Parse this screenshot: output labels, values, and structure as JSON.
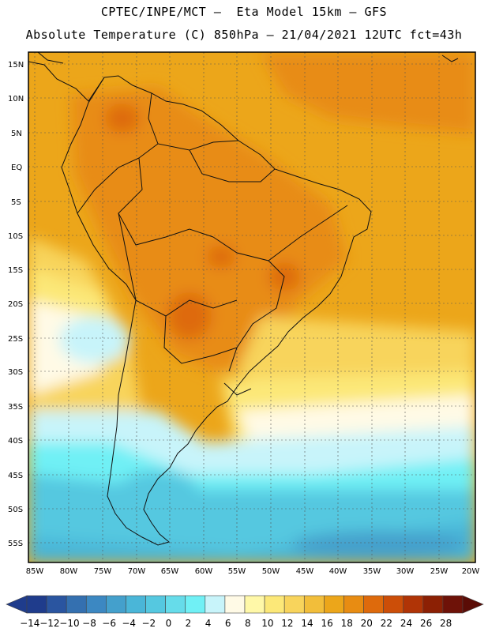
{
  "header": {
    "line1": "CPTEC/INPE/MCT –  Eta Model 15km – GFS",
    "line2": "Absolute Temperature (C) 850hPa – 21/04/2021 12UTC fct=43h"
  },
  "map": {
    "lat_labels": [
      "15N",
      "10N",
      "5N",
      "EQ",
      "5S",
      "10S",
      "15S",
      "20S",
      "25S",
      "30S",
      "35S",
      "40S",
      "45S",
      "50S",
      "55S"
    ],
    "lon_labels": [
      "85W",
      "80W",
      "75W",
      "70W",
      "65W",
      "60W",
      "55W",
      "50W",
      "45W",
      "40W",
      "35W",
      "30W",
      "25W",
      "20W"
    ],
    "lat_range": [
      -58,
      16
    ],
    "lon_range": [
      -86,
      -20
    ],
    "gridlines": true
  },
  "colorbar": {
    "ticks": [
      "-14",
      "-12",
      "-10",
      "-8",
      "-6",
      "-4",
      "-2",
      "0",
      "2",
      "4",
      "6",
      "8",
      "10",
      "12",
      "14",
      "16",
      "18",
      "20",
      "22",
      "24",
      "26",
      "28"
    ],
    "colors": [
      "#1f3c8c",
      "#2a55a0",
      "#3470b0",
      "#3c88c2",
      "#44a0cc",
      "#4ab6d8",
      "#55c8e0",
      "#66dcea",
      "#70f0f5",
      "#c8f4fa",
      "#fffae6",
      "#fff8a8",
      "#fce878",
      "#f8d45c",
      "#f2be3a",
      "#eca61a",
      "#e88c12",
      "#de6a0c",
      "#cc4e08",
      "#b03406",
      "#8c2004",
      "#6e1208"
    ]
  }
}
